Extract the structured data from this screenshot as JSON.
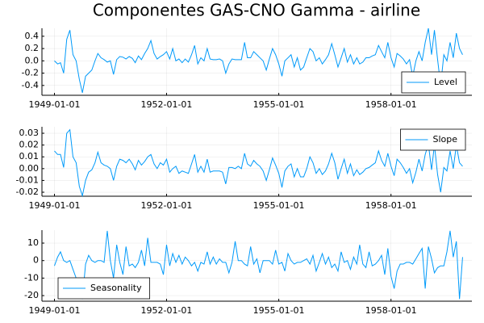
{
  "chart_data": [
    {
      "type": "line",
      "title": "Componentes GAS-CNO Gamma - airline",
      "x": [
        "1949-01-01",
        "1949-02-01",
        "1949-03-01",
        "1949-04-01",
        "1949-05-01",
        "1949-06-01",
        "1949-07-01",
        "1949-08-01",
        "1949-09-01",
        "1949-10-01",
        "1949-11-01",
        "1949-12-01",
        "1950-01-01",
        "1950-02-01",
        "1950-03-01",
        "1950-04-01",
        "1950-05-01",
        "1950-06-01",
        "1950-07-01",
        "1950-08-01",
        "1950-09-01",
        "1950-10-01",
        "1950-11-01",
        "1950-12-01",
        "1951-01-01",
        "1951-02-01",
        "1951-03-01",
        "1951-04-01",
        "1951-05-01",
        "1951-06-01",
        "1951-07-01",
        "1951-08-01",
        "1951-09-01",
        "1951-10-01",
        "1951-11-01",
        "1951-12-01",
        "1952-01-01",
        "1952-02-01",
        "1952-03-01",
        "1952-04-01",
        "1952-05-01",
        "1952-06-01",
        "1952-07-01",
        "1952-08-01",
        "1952-09-01",
        "1952-10-01",
        "1952-11-01",
        "1952-12-01",
        "1953-01-01",
        "1953-02-01",
        "1953-03-01",
        "1953-04-01",
        "1953-05-01",
        "1953-06-01",
        "1953-07-01",
        "1953-08-01",
        "1953-09-01",
        "1953-10-01",
        "1953-11-01",
        "1953-12-01",
        "1954-01-01",
        "1954-02-01",
        "1954-03-01",
        "1954-04-01",
        "1954-05-01",
        "1954-06-01",
        "1954-07-01",
        "1954-08-01",
        "1954-09-01",
        "1954-10-01",
        "1954-11-01",
        "1954-12-01",
        "1955-01-01",
        "1955-02-01",
        "1955-03-01",
        "1955-04-01",
        "1955-05-01",
        "1955-06-01",
        "1955-07-01",
        "1955-08-01",
        "1955-09-01",
        "1955-10-01",
        "1955-11-01",
        "1955-12-01",
        "1956-01-01",
        "1956-02-01",
        "1956-03-01",
        "1956-04-01",
        "1956-05-01",
        "1956-06-01",
        "1956-07-01",
        "1956-08-01",
        "1956-09-01",
        "1956-10-01",
        "1956-11-01",
        "1956-12-01",
        "1957-01-01",
        "1957-02-01",
        "1957-03-01",
        "1957-04-01",
        "1957-05-01",
        "1957-06-01",
        "1957-07-01",
        "1957-08-01",
        "1957-09-01",
        "1957-10-01",
        "1957-11-01",
        "1957-12-01",
        "1958-01-01",
        "1958-02-01",
        "1958-03-01",
        "1958-04-01",
        "1958-05-01",
        "1958-06-01",
        "1958-07-01",
        "1958-08-01",
        "1958-09-01",
        "1958-10-01",
        "1958-11-01",
        "1958-12-01",
        "1959-01-01",
        "1959-02-01",
        "1959-03-01",
        "1959-04-01",
        "1959-05-01",
        "1959-06-01",
        "1959-07-01",
        "1959-08-01",
        "1959-09-01",
        "1959-10-01",
        "1959-11-01",
        "1959-12-01"
      ],
      "series": [
        {
          "name": "Level",
          "color": "#009afa",
          "values": [
            0.0,
            -0.05,
            -0.03,
            -0.2,
            0.35,
            0.5,
            0.1,
            0.0,
            -0.3,
            -0.52,
            -0.25,
            -0.2,
            -0.15,
            0.0,
            0.12,
            0.05,
            0.02,
            -0.02,
            0.0,
            -0.22,
            0.02,
            0.07,
            0.06,
            0.03,
            0.07,
            0.04,
            -0.03,
            0.08,
            0.02,
            0.12,
            0.2,
            0.33,
            0.12,
            0.03,
            0.07,
            0.1,
            0.15,
            0.03,
            0.2,
            0.0,
            0.03,
            -0.03,
            0.03,
            -0.02,
            0.1,
            0.25,
            -0.05,
            0.05,
            0.0,
            0.2,
            0.03,
            0.02,
            0.02,
            0.03,
            0.0,
            -0.2,
            -0.05,
            0.03,
            0.02,
            0.02,
            0.02,
            0.3,
            0.05,
            0.05,
            0.15,
            0.1,
            0.05,
            0.0,
            -0.15,
            0.03,
            0.2,
            0.1,
            -0.05,
            -0.25,
            0.0,
            0.05,
            0.1,
            -0.1,
            0.05,
            -0.15,
            -0.1,
            0.05,
            0.2,
            0.15,
            0.0,
            0.05,
            -0.05,
            0.02,
            0.1,
            0.28,
            0.1,
            -0.1,
            0.05,
            0.2,
            -0.02,
            0.1,
            -0.05,
            0.05,
            -0.05,
            -0.02,
            0.05,
            0.05,
            0.08,
            0.1,
            0.25,
            0.15,
            0.05,
            0.3,
            0.05,
            -0.1,
            0.12,
            0.08,
            0.03,
            -0.05,
            0.02,
            -0.25,
            0.0,
            0.15,
            0.0,
            0.3,
            0.53,
            0.1,
            0.5,
            0.02,
            -0.4,
            0.1,
            0.0,
            0.3,
            0.05,
            0.45,
            0.2,
            0.1
          ]
        }
      ],
      "xlim": [
        "1948-09-01",
        "1960-03-01"
      ],
      "xticks": [
        "1949-01-01",
        "1952-01-01",
        "1955-01-01",
        "1958-01-01"
      ],
      "ylim": [
        -0.56,
        0.53
      ],
      "yticks": [
        -0.4,
        -0.2,
        {
          "value": 0,
          "label": "0.0"
        },
        0.2,
        0.4
      ],
      "grid": true,
      "legend": "bottom-right"
    },
    {
      "type": "line",
      "x": [
        "1949-01-01",
        "1949-02-01",
        "1949-03-01",
        "1949-04-01",
        "1949-05-01",
        "1949-06-01",
        "1949-07-01",
        "1949-08-01",
        "1949-09-01",
        "1949-10-01",
        "1949-11-01",
        "1949-12-01",
        "1950-01-01",
        "1950-02-01",
        "1950-03-01",
        "1950-04-01",
        "1950-05-01",
        "1950-06-01",
        "1950-07-01",
        "1950-08-01",
        "1950-09-01",
        "1950-10-01",
        "1950-11-01",
        "1950-12-01",
        "1951-01-01",
        "1951-02-01",
        "1951-03-01",
        "1951-04-01",
        "1951-05-01",
        "1951-06-01",
        "1951-07-01",
        "1951-08-01",
        "1951-09-01",
        "1951-10-01",
        "1951-11-01",
        "1951-12-01",
        "1952-01-01",
        "1952-02-01",
        "1952-03-01",
        "1952-04-01",
        "1952-05-01",
        "1952-06-01",
        "1952-07-01",
        "1952-08-01",
        "1952-09-01",
        "1952-10-01",
        "1952-11-01",
        "1952-12-01",
        "1953-01-01",
        "1953-02-01",
        "1953-03-01",
        "1953-04-01",
        "1953-05-01",
        "1953-06-01",
        "1953-07-01",
        "1953-08-01",
        "1953-09-01",
        "1953-10-01",
        "1953-11-01",
        "1953-12-01",
        "1954-01-01",
        "1954-02-01",
        "1954-03-01",
        "1954-04-01",
        "1954-05-01",
        "1954-06-01",
        "1954-07-01",
        "1954-08-01",
        "1954-09-01",
        "1954-10-01",
        "1954-11-01",
        "1954-12-01",
        "1955-01-01",
        "1955-02-01",
        "1955-03-01",
        "1955-04-01",
        "1955-05-01",
        "1955-06-01",
        "1955-07-01",
        "1955-08-01",
        "1955-09-01",
        "1955-10-01",
        "1955-11-01",
        "1955-12-01",
        "1956-01-01",
        "1956-02-01",
        "1956-03-01",
        "1956-04-01",
        "1956-05-01",
        "1956-06-01",
        "1956-07-01",
        "1956-08-01",
        "1956-09-01",
        "1956-10-01",
        "1956-11-01",
        "1956-12-01",
        "1957-01-01",
        "1957-02-01",
        "1957-03-01",
        "1957-04-01",
        "1957-05-01",
        "1957-06-01",
        "1957-07-01",
        "1957-08-01",
        "1957-09-01",
        "1957-10-01",
        "1957-11-01",
        "1957-12-01",
        "1958-01-01",
        "1958-02-01",
        "1958-03-01",
        "1958-04-01",
        "1958-05-01",
        "1958-06-01",
        "1958-07-01",
        "1958-08-01",
        "1958-09-01",
        "1958-10-01",
        "1958-11-01",
        "1958-12-01",
        "1959-01-01",
        "1959-02-01",
        "1959-03-01",
        "1959-04-01",
        "1959-05-01",
        "1959-06-01",
        "1959-07-01",
        "1959-08-01",
        "1959-09-01",
        "1959-10-01",
        "1959-11-01",
        "1959-12-01"
      ],
      "series": [
        {
          "name": "Slope",
          "color": "#009afa",
          "values": [
            0.015,
            0.012,
            0.012,
            0.001,
            0.03,
            0.033,
            0.01,
            0.005,
            -0.015,
            -0.023,
            -0.01,
            -0.003,
            -0.001,
            0.005,
            0.014,
            0.005,
            0.003,
            0.002,
            0.0,
            -0.01,
            0.002,
            0.008,
            0.007,
            0.005,
            0.008,
            0.004,
            -0.001,
            0.007,
            0.003,
            0.006,
            0.01,
            0.012,
            0.004,
            0.0,
            0.005,
            0.003,
            0.008,
            -0.003,
            0.0,
            0.002,
            -0.004,
            -0.002,
            -0.003,
            -0.004,
            0.004,
            0.012,
            -0.003,
            0.002,
            -0.003,
            0.008,
            -0.003,
            -0.002,
            -0.002,
            -0.002,
            -0.003,
            -0.013,
            0.001,
            0.001,
            0.0,
            0.002,
            0.0,
            0.013,
            0.004,
            0.002,
            0.007,
            0.004,
            0.002,
            -0.002,
            -0.01,
            -0.001,
            0.009,
            0.003,
            -0.004,
            -0.016,
            -0.002,
            0.002,
            0.004,
            -0.007,
            0.0,
            -0.007,
            -0.007,
            0.0,
            0.01,
            0.005,
            -0.004,
            0.0,
            -0.005,
            -0.002,
            0.004,
            0.013,
            0.005,
            -0.009,
            0.0,
            0.008,
            -0.004,
            0.004,
            -0.006,
            -0.001,
            -0.005,
            -0.003,
            0.0,
            0.001,
            0.003,
            0.005,
            0.015,
            0.007,
            0.002,
            0.013,
            0.002,
            -0.006,
            0.008,
            0.005,
            0.001,
            -0.004,
            0.0,
            -0.012,
            -0.003,
            0.008,
            -0.002,
            0.012,
            0.021,
            -0.001,
            0.02,
            -0.005,
            -0.02,
            0.001,
            -0.002,
            0.015,
            0.0,
            0.02,
            0.005,
            0.002
          ]
        }
      ],
      "xlim": [
        "1948-09-01",
        "1960-03-01"
      ],
      "xticks": [
        "1949-01-01",
        "1952-01-01",
        "1955-01-01",
        "1958-01-01"
      ],
      "ylim": [
        -0.0234,
        0.0355
      ],
      "yticks": [
        -0.02,
        -0.01,
        {
          "value": 0,
          "label": "0.00"
        },
        0.01,
        0.02,
        0.03
      ],
      "grid": true,
      "legend": "top-right"
    },
    {
      "type": "line",
      "x": [
        "1949-01-01",
        "1949-02-01",
        "1949-03-01",
        "1949-04-01",
        "1949-05-01",
        "1949-06-01",
        "1949-07-01",
        "1949-08-01",
        "1949-09-01",
        "1949-10-01",
        "1949-11-01",
        "1949-12-01",
        "1950-01-01",
        "1950-02-01",
        "1950-03-01",
        "1950-04-01",
        "1950-05-01",
        "1950-06-01",
        "1950-07-01",
        "1950-08-01",
        "1950-09-01",
        "1950-10-01",
        "1950-11-01",
        "1950-12-01",
        "1951-01-01",
        "1951-02-01",
        "1951-03-01",
        "1951-04-01",
        "1951-05-01",
        "1951-06-01",
        "1951-07-01",
        "1951-08-01",
        "1951-09-01",
        "1951-10-01",
        "1951-11-01",
        "1951-12-01",
        "1952-01-01",
        "1952-02-01",
        "1952-03-01",
        "1952-04-01",
        "1952-05-01",
        "1952-06-01",
        "1952-07-01",
        "1952-08-01",
        "1952-09-01",
        "1952-10-01",
        "1952-11-01",
        "1952-12-01",
        "1953-01-01",
        "1953-02-01",
        "1953-03-01",
        "1953-04-01",
        "1953-05-01",
        "1953-06-01",
        "1953-07-01",
        "1953-08-01",
        "1953-09-01",
        "1953-10-01",
        "1953-11-01",
        "1953-12-01",
        "1954-01-01",
        "1954-02-01",
        "1954-03-01",
        "1954-04-01",
        "1954-05-01",
        "1954-06-01",
        "1954-07-01",
        "1954-08-01",
        "1954-09-01",
        "1954-10-01",
        "1954-11-01",
        "1954-12-01",
        "1955-01-01",
        "1955-02-01",
        "1955-03-01",
        "1955-04-01",
        "1955-05-01",
        "1955-06-01",
        "1955-07-01",
        "1955-08-01",
        "1955-09-01",
        "1955-10-01",
        "1955-11-01",
        "1955-12-01",
        "1956-01-01",
        "1956-02-01",
        "1956-03-01",
        "1956-04-01",
        "1956-05-01",
        "1956-06-01",
        "1956-07-01",
        "1956-08-01",
        "1956-09-01",
        "1956-10-01",
        "1956-11-01",
        "1956-12-01",
        "1957-01-01",
        "1957-02-01",
        "1957-03-01",
        "1957-04-01",
        "1957-05-01",
        "1957-06-01",
        "1957-07-01",
        "1957-08-01",
        "1957-09-01",
        "1957-10-01",
        "1957-11-01",
        "1957-12-01",
        "1958-01-01",
        "1958-02-01",
        "1958-03-01",
        "1958-04-01",
        "1958-05-01",
        "1958-06-01",
        "1958-07-01",
        "1958-08-01",
        "1958-09-01",
        "1958-10-01",
        "1958-11-01",
        "1958-12-01",
        "1959-01-01",
        "1959-02-01",
        "1959-03-01",
        "1959-04-01",
        "1959-05-01",
        "1959-06-01",
        "1959-07-01",
        "1959-08-01",
        "1959-09-01",
        "1959-10-01",
        "1959-11-01",
        "1959-12-01"
      ],
      "series": [
        {
          "name": "Seasonality",
          "color": "#009afa",
          "values": [
            -3,
            2,
            5,
            0,
            -1,
            0,
            -5,
            -10,
            -16,
            -22,
            -2,
            3,
            0,
            -1,
            0,
            0,
            -1,
            17,
            0,
            -10,
            9,
            -1,
            -8,
            8,
            -3,
            -2,
            -4,
            -1,
            6,
            -3,
            13,
            -1,
            -1,
            -1,
            -2,
            -8,
            9,
            -3,
            4,
            -1,
            3,
            -2,
            2,
            0,
            -3,
            -1,
            -6,
            -1,
            -2,
            5,
            -2,
            2,
            -2,
            1,
            -1,
            -1,
            -7,
            -1,
            11,
            0,
            0,
            -2,
            -3,
            8,
            -2,
            1,
            -7,
            0,
            0,
            0,
            -2,
            6,
            -2,
            -1,
            -6,
            4,
            0,
            -2,
            -1,
            -1,
            0,
            1,
            -2,
            3,
            -6,
            -1,
            4,
            -2,
            2,
            -4,
            -2,
            -6,
            5,
            -1,
            0,
            -5,
            2,
            -2,
            9,
            -2,
            -4,
            5,
            -3,
            -2,
            0,
            3,
            -8,
            7,
            -9,
            -16,
            -6,
            -2,
            -2,
            -1,
            -1,
            -2,
            1,
            4,
            7,
            -16,
            8,
            1,
            -7,
            -4,
            -3,
            -3,
            5,
            17,
            2,
            11,
            -22,
            2
          ]
        }
      ],
      "xlim": [
        "1948-09-01",
        "1960-03-01"
      ],
      "xticks": [
        "1949-01-01",
        "1952-01-01",
        "1955-01-01",
        "1958-01-01"
      ],
      "ylim": [
        -23.2,
        17.4
      ],
      "yticks": [
        -20,
        -10,
        0,
        10
      ],
      "grid": true,
      "legend": "bottom-left"
    }
  ]
}
